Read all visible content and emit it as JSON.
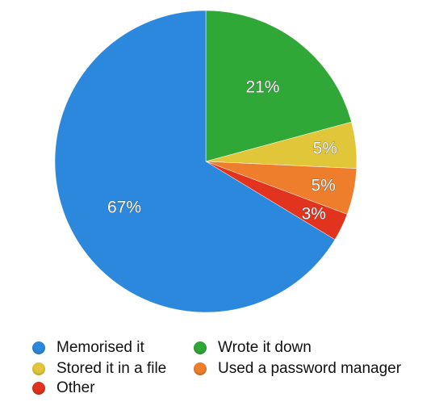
{
  "chart_data": {
    "type": "pie",
    "title": "",
    "slices": [
      {
        "label": "Wrote it down",
        "value": 21,
        "value_label": "21%",
        "color": "#30a838"
      },
      {
        "label": "Stored it in a file",
        "value": 5,
        "value_label": "5%",
        "color": "#e2c63a"
      },
      {
        "label": "Used a password manager",
        "value": 5,
        "value_label": "5%",
        "color": "#ee7e2c"
      },
      {
        "label": "Other",
        "value": 3,
        "value_label": "3%",
        "color": "#e2331f"
      },
      {
        "label": "Memorised it",
        "value": 67,
        "value_label": "67%",
        "color": "#2c88dc"
      }
    ],
    "legend_placement": "bottom"
  },
  "legend": [
    {
      "label": "Memorised it",
      "color": "#2c88dc"
    },
    {
      "label": "Wrote it down",
      "color": "#30a838"
    },
    {
      "label": "Stored it in a file",
      "color": "#e2c63a"
    },
    {
      "label": "Used a password manager",
      "color": "#ee7e2c"
    },
    {
      "label": "Other",
      "color": "#e2331f"
    }
  ]
}
